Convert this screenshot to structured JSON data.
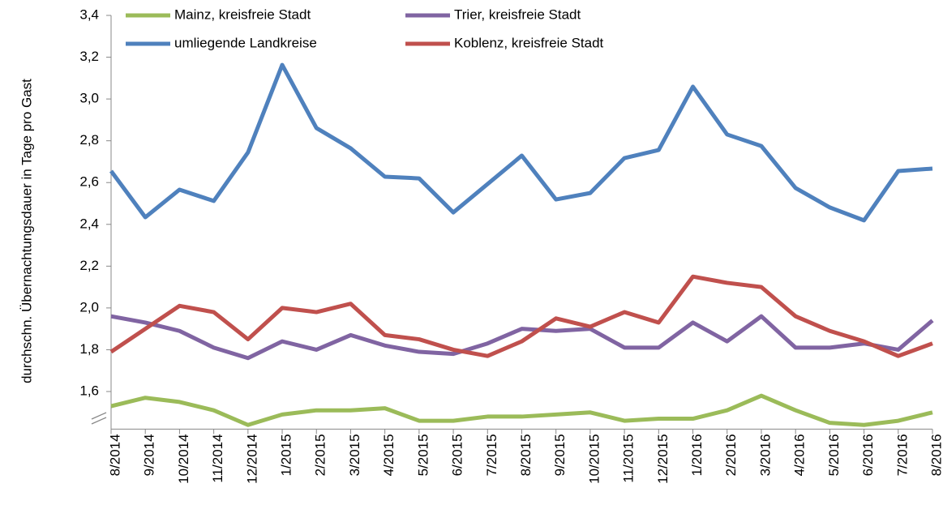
{
  "chart_data": {
    "type": "line",
    "y_label": "durchschn. Übernachtungsdauer in Tage pro Gast",
    "categories": [
      "8/2014",
      "9/2014",
      "10/2014",
      "11/2014",
      "12/2014",
      "1/2015",
      "2/2015",
      "3/2015",
      "4/2015",
      "5/2015",
      "6/2015",
      "7/2015",
      "8/2015",
      "9/2015",
      "10/2015",
      "11/2015",
      "12/2015",
      "1/2016",
      "2/2016",
      "3/2016",
      "4/2016",
      "5/2016",
      "6/2016",
      "7/2016",
      "8/2016"
    ],
    "series": [
      {
        "name": "Mainz, kreisfreie Stadt",
        "color": "#9bbb59",
        "values": [
          1.53,
          1.57,
          1.55,
          1.51,
          1.44,
          1.49,
          1.51,
          1.51,
          1.52,
          1.46,
          1.46,
          1.48,
          1.48,
          1.49,
          1.5,
          1.46,
          1.47,
          1.47,
          1.51,
          1.58,
          1.51,
          1.45,
          1.44,
          1.46,
          1.5
        ]
      },
      {
        "name": "Trier, kreisfreie Stadt",
        "color": "#8064a2",
        "values": [
          1.96,
          1.93,
          1.89,
          1.81,
          1.76,
          1.84,
          1.8,
          1.87,
          1.82,
          1.79,
          1.78,
          1.83,
          1.9,
          1.89,
          1.9,
          1.81,
          1.81,
          1.93,
          1.84,
          1.96,
          1.81,
          1.81,
          1.83,
          1.8,
          1.94
        ]
      },
      {
        "name": "umliegende Landkreise",
        "color": "#4f81bd",
        "values": [
          2.655,
          2.434,
          2.566,
          2.512,
          2.744,
          3.163,
          2.861,
          2.764,
          2.628,
          2.62,
          2.457,
          2.593,
          2.729,
          2.519,
          2.55,
          2.717,
          2.756,
          3.059,
          2.83,
          2.775,
          2.574,
          2.481,
          2.419,
          2.655,
          2.667
        ]
      },
      {
        "name": "Koblenz, kreisfreie Stadt",
        "color": "#c0504d",
        "values": [
          1.79,
          1.9,
          2.01,
          1.98,
          1.85,
          2.0,
          1.98,
          2.02,
          1.87,
          1.85,
          1.8,
          1.77,
          1.84,
          1.95,
          1.91,
          1.98,
          1.93,
          2.15,
          2.12,
          2.1,
          1.96,
          1.89,
          1.84,
          1.77,
          1.83
        ]
      }
    ],
    "ylim": [
      1.42,
      3.4
    ],
    "yticks": [
      {
        "value": 1.6,
        "label": "1,6"
      },
      {
        "value": 1.8,
        "label": "1,8"
      },
      {
        "value": 2.0,
        "label": "2,0"
      },
      {
        "value": 2.2,
        "label": "2,2"
      },
      {
        "value": 2.4,
        "label": "2,4"
      },
      {
        "value": 2.6,
        "label": "2,6"
      },
      {
        "value": 2.8,
        "label": "2,8"
      },
      {
        "value": 3.0,
        "label": "3,0"
      },
      {
        "value": 3.2,
        "label": "3,2"
      },
      {
        "value": 3.4,
        "label": "3,4"
      }
    ],
    "grid": false,
    "legend": "top"
  }
}
